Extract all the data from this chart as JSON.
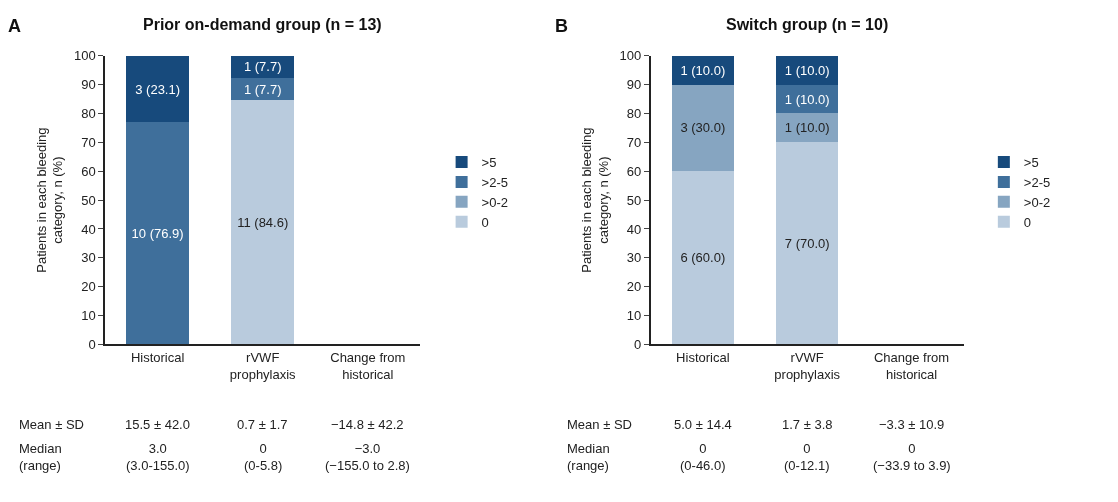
{
  "chart_data": [
    {
      "type": "bar",
      "stacked": true,
      "title": "Prior on-demand group (n = 13)",
      "ylabel": "Patients in each bleeding category, n (%)",
      "categories": [
        "Historical",
        "rVWF prophylaxis",
        "Change from historical"
      ],
      "ylim": [
        0,
        100
      ],
      "yticks": [
        0,
        10,
        20,
        30,
        40,
        50,
        60,
        70,
        80,
        90,
        100
      ],
      "legend": "right",
      "series": [
        {
          "name": "0",
          "color": "#b9cbdd",
          "values": [
            0,
            84.6,
            null
          ],
          "value_labels": [
            null,
            "11 (84.6)",
            null
          ]
        },
        {
          "name": ">0-2",
          "color": "#86a5c1",
          "values": [
            0,
            0,
            null
          ],
          "value_labels": [
            null,
            null,
            null
          ]
        },
        {
          "name": ">2-5",
          "color": "#3f6f9b",
          "values": [
            76.9,
            7.7,
            null
          ],
          "value_labels": [
            "10 (76.9)",
            "1 (7.7)",
            null
          ]
        },
        {
          "name": ">5",
          "color": "#174a7c",
          "values": [
            23.1,
            7.7,
            null
          ],
          "value_labels": [
            "3 (23.1)",
            "1 (7.7)",
            null
          ]
        }
      ],
      "annotations": [
        "A",
        "Mean ± SD",
        "15.5 ± 42.0",
        "0.7 ± 1.7",
        "−14.8 ± 42.2",
        "Median (range)",
        "3.0 (3.0-155.0)",
        "0 (0-5.8)",
        "−3.0 (−155.0 to 2.8)"
      ]
    },
    {
      "type": "bar",
      "stacked": true,
      "title": "Switch group (n = 10)",
      "ylabel": "Patients in each bleeding category, n (%)",
      "categories": [
        "Historical",
        "rVWF prophylaxis",
        "Change from historical"
      ],
      "ylim": [
        0,
        100
      ],
      "yticks": [
        0,
        10,
        20,
        30,
        40,
        50,
        60,
        70,
        80,
        90,
        100
      ],
      "legend": "right",
      "series": [
        {
          "name": "0",
          "color": "#b9cbdd",
          "values": [
            60,
            70,
            null
          ],
          "value_labels": [
            "6 (60.0)",
            "7 (70.0)",
            null
          ]
        },
        {
          "name": ">0-2",
          "color": "#86a5c1",
          "values": [
            30,
            10,
            null
          ],
          "value_labels": [
            "3 (30.0)",
            "1 (10.0)",
            null
          ]
        },
        {
          "name": ">2-5",
          "color": "#3f6f9b",
          "values": [
            0,
            10,
            null
          ],
          "value_labels": [
            null,
            "1 (10.0)",
            null
          ]
        },
        {
          "name": ">5",
          "color": "#174a7c",
          "values": [
            10,
            10,
            null
          ],
          "value_labels": [
            "1 (10.0)",
            "1 (10.0)",
            null
          ]
        }
      ],
      "annotations": [
        "B",
        "Mean ± SD",
        "5.0 ± 14.4",
        "1.7 ± 3.8",
        "−3.3 ± 10.9",
        "Median (range)",
        "0 (0-46.0)",
        "0 (0-12.1)",
        "0 (−33.9 to 3.9)"
      ]
    }
  ]
}
